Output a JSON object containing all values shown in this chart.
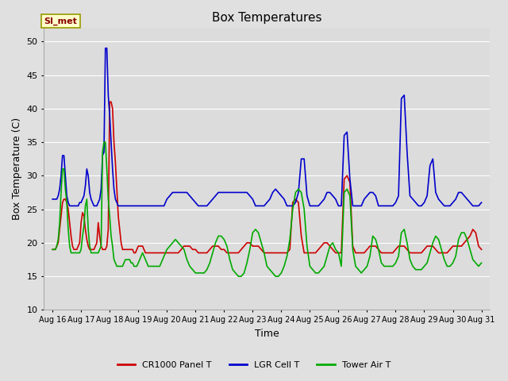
{
  "title": "Box Temperatures",
  "xlabel": "Time",
  "ylabel": "Box Temperature (C)",
  "ylim": [
    10,
    52
  ],
  "yticks": [
    10,
    15,
    20,
    25,
    30,
    35,
    40,
    45,
    50
  ],
  "fig_bg": "#e0e0e0",
  "plot_bg": "#dcdcdc",
  "annotation_text": "SI_met",
  "annotation_bg": "#ffffcc",
  "annotation_border": "#999900",
  "x_labels": [
    "Aug 16",
    "Aug 17",
    "Aug 18",
    "Aug 19",
    "Aug 20",
    "Aug 21",
    "Aug 22",
    "Aug 23",
    "Aug 24",
    "Aug 25",
    "Aug 26",
    "Aug 27",
    "Aug 28",
    "Aug 29",
    "Aug 30",
    "Aug 31"
  ],
  "x_positions": [
    0,
    1,
    2,
    3,
    4,
    5,
    6,
    7,
    8,
    9,
    10,
    11,
    12,
    13,
    14,
    15
  ],
  "series": {
    "CR1000 Panel T": {
      "color": "#cc0000",
      "linewidth": 1.2,
      "data_x": [
        0.0,
        0.05,
        0.1,
        0.15,
        0.2,
        0.25,
        0.3,
        0.35,
        0.4,
        0.45,
        0.5,
        0.55,
        0.6,
        0.65,
        0.7,
        0.75,
        0.8,
        0.85,
        0.9,
        0.95,
        1.0,
        1.05,
        1.1,
        1.15,
        1.2,
        1.25,
        1.3,
        1.35,
        1.4,
        1.45,
        1.5,
        1.55,
        1.6,
        1.65,
        1.7,
        1.75,
        1.8,
        1.85,
        1.9,
        1.95,
        2.0,
        2.05,
        2.1,
        2.15,
        2.2,
        2.25,
        2.3,
        2.35,
        2.4,
        2.45,
        2.5,
        2.55,
        2.6,
        2.65,
        2.7,
        2.75,
        2.8,
        2.85,
        2.9,
        2.95,
        3.0,
        3.05,
        3.1,
        3.15,
        3.2,
        3.25,
        3.3,
        3.35,
        3.4,
        3.45,
        3.5,
        3.55,
        3.6,
        3.65,
        3.7,
        3.75,
        3.8,
        3.85,
        3.9,
        3.95,
        4.0,
        4.1,
        4.2,
        4.3,
        4.4,
        4.5,
        4.6,
        4.7,
        4.8,
        4.9,
        5.0,
        5.1,
        5.2,
        5.3,
        5.4,
        5.5,
        5.6,
        5.7,
        5.8,
        5.9,
        6.0,
        6.1,
        6.2,
        6.3,
        6.4,
        6.5,
        6.6,
        6.7,
        6.8,
        6.9,
        7.0,
        7.1,
        7.2,
        7.3,
        7.4,
        7.5,
        7.6,
        7.7,
        7.8,
        7.9,
        8.0,
        8.1,
        8.2,
        8.3,
        8.4,
        8.5,
        8.6,
        8.7,
        8.8,
        8.9,
        9.0,
        9.1,
        9.2,
        9.3,
        9.4,
        9.5,
        9.6,
        9.7,
        9.8,
        9.9,
        10.0,
        10.1,
        10.2,
        10.3,
        10.4,
        10.5,
        10.6,
        10.7,
        10.8,
        10.9,
        11.0,
        11.1,
        11.2,
        11.3,
        11.4,
        11.5,
        11.6,
        11.7,
        11.8,
        11.9,
        12.0,
        12.1,
        12.2,
        12.3,
        12.4,
        12.5,
        12.6,
        12.7,
        12.8,
        12.9,
        13.0,
        13.1,
        13.2,
        13.3,
        13.4,
        13.5,
        13.6,
        13.7,
        13.8,
        13.9,
        14.0,
        14.1,
        14.2,
        14.3,
        14.4,
        14.5,
        14.6,
        14.7,
        14.8,
        14.9,
        15.0
      ],
      "data_y": [
        19.0,
        19.0,
        19.0,
        19.5,
        20.0,
        22.0,
        24.0,
        26.0,
        26.5,
        26.5,
        26.0,
        25.0,
        23.0,
        21.0,
        19.5,
        19.0,
        19.0,
        19.0,
        19.5,
        20.0,
        23.0,
        24.5,
        24.0,
        22.0,
        20.5,
        19.5,
        19.0,
        19.0,
        19.0,
        19.0,
        19.5,
        20.0,
        23.0,
        21.0,
        19.5,
        19.0,
        19.0,
        19.0,
        19.5,
        22.0,
        41.0,
        41.0,
        40.0,
        35.0,
        32.0,
        28.0,
        24.0,
        22.0,
        20.0,
        19.0,
        19.0,
        19.0,
        19.0,
        19.0,
        19.0,
        19.0,
        19.0,
        18.5,
        18.5,
        19.0,
        19.5,
        19.5,
        19.5,
        19.5,
        19.0,
        18.5,
        18.5,
        18.5,
        18.5,
        18.5,
        18.5,
        18.5,
        18.5,
        18.5,
        18.5,
        18.5,
        18.5,
        18.5,
        18.5,
        18.5,
        18.5,
        18.5,
        18.5,
        18.5,
        18.5,
        19.0,
        19.5,
        19.5,
        19.5,
        19.0,
        19.0,
        18.5,
        18.5,
        18.5,
        18.5,
        19.0,
        19.5,
        19.5,
        19.5,
        19.0,
        19.0,
        18.5,
        18.5,
        18.5,
        18.5,
        18.5,
        19.0,
        19.5,
        20.0,
        20.0,
        19.5,
        19.5,
        19.5,
        19.0,
        18.5,
        18.5,
        18.5,
        18.5,
        18.5,
        18.5,
        18.5,
        18.5,
        18.5,
        19.0,
        26.0,
        26.5,
        26.0,
        21.0,
        18.5,
        18.5,
        18.5,
        18.5,
        18.5,
        19.0,
        19.5,
        20.0,
        20.0,
        19.5,
        19.0,
        18.5,
        18.5,
        18.5,
        29.5,
        30.0,
        29.0,
        19.5,
        18.5,
        18.5,
        18.5,
        18.5,
        19.0,
        19.5,
        19.5,
        19.5,
        19.0,
        18.5,
        18.5,
        18.5,
        18.5,
        18.5,
        19.0,
        19.5,
        19.5,
        19.5,
        19.0,
        18.5,
        18.5,
        18.5,
        18.5,
        18.5,
        19.0,
        19.5,
        19.5,
        19.5,
        19.0,
        18.5,
        18.5,
        18.5,
        18.5,
        19.0,
        19.5,
        19.5,
        19.5,
        19.5,
        20.0,
        20.5,
        21.0,
        22.0,
        21.5,
        19.5,
        19.0
      ]
    },
    "LGR Cell T": {
      "color": "#0000cc",
      "linewidth": 1.2,
      "data_x": [
        0.0,
        0.05,
        0.1,
        0.15,
        0.2,
        0.25,
        0.3,
        0.35,
        0.4,
        0.45,
        0.5,
        0.55,
        0.6,
        0.65,
        0.7,
        0.75,
        0.8,
        0.85,
        0.9,
        0.95,
        1.0,
        1.05,
        1.1,
        1.15,
        1.2,
        1.25,
        1.3,
        1.35,
        1.4,
        1.45,
        1.5,
        1.55,
        1.6,
        1.65,
        1.7,
        1.75,
        1.8,
        1.85,
        1.9,
        1.95,
        2.0,
        2.05,
        2.1,
        2.15,
        2.2,
        2.25,
        2.3,
        2.35,
        2.4,
        2.45,
        2.5,
        2.55,
        2.6,
        2.65,
        2.7,
        2.75,
        2.8,
        2.85,
        2.9,
        2.95,
        3.0,
        3.05,
        3.1,
        3.15,
        3.2,
        3.25,
        3.3,
        3.35,
        3.4,
        3.45,
        3.5,
        3.55,
        3.6,
        3.65,
        3.7,
        3.75,
        3.8,
        3.85,
        3.9,
        3.95,
        4.0,
        4.1,
        4.2,
        4.3,
        4.4,
        4.5,
        4.6,
        4.7,
        4.8,
        4.9,
        5.0,
        5.1,
        5.2,
        5.3,
        5.4,
        5.5,
        5.6,
        5.7,
        5.8,
        5.9,
        6.0,
        6.1,
        6.2,
        6.3,
        6.4,
        6.5,
        6.6,
        6.7,
        6.8,
        6.9,
        7.0,
        7.1,
        7.2,
        7.3,
        7.4,
        7.5,
        7.6,
        7.7,
        7.8,
        7.9,
        8.0,
        8.1,
        8.2,
        8.3,
        8.4,
        8.5,
        8.6,
        8.7,
        8.8,
        8.9,
        9.0,
        9.1,
        9.2,
        9.3,
        9.4,
        9.5,
        9.6,
        9.7,
        9.8,
        9.9,
        10.0,
        10.1,
        10.2,
        10.3,
        10.4,
        10.5,
        10.6,
        10.7,
        10.8,
        10.9,
        11.0,
        11.1,
        11.2,
        11.3,
        11.4,
        11.5,
        11.6,
        11.7,
        11.8,
        11.9,
        12.0,
        12.1,
        12.2,
        12.3,
        12.4,
        12.5,
        12.6,
        12.7,
        12.8,
        12.9,
        13.0,
        13.1,
        13.2,
        13.3,
        13.4,
        13.5,
        13.6,
        13.7,
        13.8,
        13.9,
        14.0,
        14.1,
        14.2,
        14.3,
        14.4,
        14.5,
        14.6,
        14.7,
        14.8,
        14.9,
        15.0
      ],
      "data_y": [
        26.5,
        26.5,
        26.5,
        26.5,
        27.0,
        28.0,
        30.0,
        33.0,
        33.0,
        30.0,
        27.0,
        26.0,
        25.5,
        25.5,
        25.5,
        25.5,
        25.5,
        25.5,
        25.5,
        26.0,
        26.0,
        26.5,
        27.0,
        28.5,
        31.0,
        30.0,
        27.5,
        26.5,
        26.0,
        25.5,
        25.5,
        25.5,
        26.0,
        26.5,
        28.0,
        33.0,
        33.5,
        49.0,
        49.0,
        42.0,
        39.0,
        35.0,
        31.0,
        28.0,
        26.5,
        26.0,
        25.5,
        25.5,
        25.5,
        25.5,
        25.5,
        25.5,
        25.5,
        25.5,
        25.5,
        25.5,
        25.5,
        25.5,
        25.5,
        25.5,
        25.5,
        25.5,
        25.5,
        25.5,
        25.5,
        25.5,
        25.5,
        25.5,
        25.5,
        25.5,
        25.5,
        25.5,
        25.5,
        25.5,
        25.5,
        25.5,
        25.5,
        25.5,
        25.5,
        26.0,
        26.5,
        27.0,
        27.5,
        27.5,
        27.5,
        27.5,
        27.5,
        27.5,
        27.0,
        26.5,
        26.0,
        25.5,
        25.5,
        25.5,
        25.5,
        26.0,
        26.5,
        27.0,
        27.5,
        27.5,
        27.5,
        27.5,
        27.5,
        27.5,
        27.5,
        27.5,
        27.5,
        27.5,
        27.5,
        27.0,
        26.5,
        25.5,
        25.5,
        25.5,
        25.5,
        26.0,
        26.5,
        27.5,
        28.0,
        27.5,
        27.0,
        26.5,
        25.5,
        25.5,
        25.5,
        26.0,
        27.5,
        32.5,
        32.5,
        27.0,
        25.5,
        25.5,
        25.5,
        25.5,
        26.0,
        26.5,
        27.5,
        27.5,
        27.0,
        26.5,
        25.5,
        25.5,
        36.0,
        36.5,
        29.5,
        25.5,
        25.5,
        25.5,
        25.5,
        26.5,
        27.0,
        27.5,
        27.5,
        27.0,
        25.5,
        25.5,
        25.5,
        25.5,
        25.5,
        25.5,
        26.0,
        27.0,
        41.5,
        42.0,
        33.5,
        27.0,
        26.5,
        26.0,
        25.5,
        25.5,
        26.0,
        27.0,
        31.5,
        32.5,
        27.5,
        26.5,
        26.0,
        25.5,
        25.5,
        25.5,
        26.0,
        26.5,
        27.5,
        27.5,
        27.0,
        26.5,
        26.0,
        25.5,
        25.5,
        25.5,
        26.0
      ]
    },
    "Tower Air T": {
      "color": "#00aa00",
      "linewidth": 1.2,
      "data_x": [
        0.0,
        0.05,
        0.1,
        0.15,
        0.2,
        0.25,
        0.3,
        0.35,
        0.4,
        0.45,
        0.5,
        0.55,
        0.6,
        0.65,
        0.7,
        0.75,
        0.8,
        0.85,
        0.9,
        0.95,
        1.0,
        1.05,
        1.1,
        1.15,
        1.2,
        1.25,
        1.3,
        1.35,
        1.4,
        1.45,
        1.5,
        1.55,
        1.6,
        1.65,
        1.7,
        1.75,
        1.8,
        1.85,
        1.9,
        1.95,
        2.0,
        2.05,
        2.1,
        2.15,
        2.2,
        2.25,
        2.3,
        2.35,
        2.4,
        2.45,
        2.5,
        2.55,
        2.6,
        2.65,
        2.7,
        2.75,
        2.8,
        2.85,
        2.9,
        2.95,
        3.0,
        3.05,
        3.1,
        3.15,
        3.2,
        3.25,
        3.3,
        3.35,
        3.4,
        3.45,
        3.5,
        3.55,
        3.6,
        3.65,
        3.7,
        3.75,
        3.8,
        3.85,
        3.9,
        3.95,
        4.0,
        4.1,
        4.2,
        4.3,
        4.4,
        4.5,
        4.6,
        4.7,
        4.8,
        4.9,
        5.0,
        5.1,
        5.2,
        5.3,
        5.4,
        5.5,
        5.6,
        5.7,
        5.8,
        5.9,
        6.0,
        6.1,
        6.2,
        6.3,
        6.4,
        6.5,
        6.6,
        6.7,
        6.8,
        6.9,
        7.0,
        7.1,
        7.2,
        7.3,
        7.4,
        7.5,
        7.6,
        7.7,
        7.8,
        7.9,
        8.0,
        8.1,
        8.2,
        8.3,
        8.4,
        8.5,
        8.6,
        8.7,
        8.8,
        8.9,
        9.0,
        9.1,
        9.2,
        9.3,
        9.4,
        9.5,
        9.6,
        9.7,
        9.8,
        9.9,
        10.0,
        10.1,
        10.2,
        10.3,
        10.4,
        10.5,
        10.6,
        10.7,
        10.8,
        10.9,
        11.0,
        11.1,
        11.2,
        11.3,
        11.4,
        11.5,
        11.6,
        11.7,
        11.8,
        11.9,
        12.0,
        12.1,
        12.2,
        12.3,
        12.4,
        12.5,
        12.6,
        12.7,
        12.8,
        12.9,
        13.0,
        13.1,
        13.2,
        13.3,
        13.4,
        13.5,
        13.6,
        13.7,
        13.8,
        13.9,
        14.0,
        14.1,
        14.2,
        14.3,
        14.4,
        14.5,
        14.6,
        14.7,
        14.8,
        14.9,
        15.0
      ],
      "data_y": [
        19.0,
        19.0,
        19.0,
        19.5,
        20.5,
        23.0,
        27.5,
        31.0,
        31.0,
        28.0,
        26.0,
        22.0,
        19.5,
        18.5,
        18.5,
        18.5,
        18.5,
        18.5,
        18.5,
        18.5,
        19.0,
        21.0,
        22.5,
        25.5,
        26.5,
        22.0,
        19.5,
        18.5,
        18.5,
        18.5,
        18.5,
        18.5,
        18.5,
        19.0,
        19.5,
        33.5,
        35.0,
        35.0,
        31.0,
        26.5,
        24.0,
        21.0,
        19.5,
        17.5,
        17.0,
        16.5,
        16.5,
        16.5,
        16.5,
        16.5,
        17.0,
        17.5,
        17.5,
        17.5,
        17.5,
        17.0,
        17.0,
        16.5,
        16.5,
        16.5,
        17.0,
        17.5,
        18.0,
        18.5,
        18.0,
        17.5,
        17.0,
        16.5,
        16.5,
        16.5,
        16.5,
        16.5,
        16.5,
        16.5,
        16.5,
        16.5,
        17.0,
        17.5,
        18.0,
        18.5,
        19.0,
        19.5,
        20.0,
        20.5,
        20.0,
        19.5,
        19.0,
        17.5,
        16.5,
        16.0,
        15.5,
        15.5,
        15.5,
        15.5,
        16.0,
        17.0,
        18.5,
        20.0,
        21.0,
        21.0,
        20.5,
        19.5,
        17.5,
        16.0,
        15.5,
        15.0,
        15.0,
        15.5,
        17.0,
        19.0,
        21.5,
        22.0,
        21.5,
        20.0,
        18.5,
        16.5,
        16.0,
        15.5,
        15.0,
        15.0,
        15.5,
        16.5,
        18.0,
        20.5,
        25.0,
        27.5,
        28.0,
        27.5,
        25.0,
        19.5,
        16.5,
        16.0,
        15.5,
        15.5,
        16.0,
        16.5,
        18.0,
        19.5,
        20.0,
        19.0,
        18.5,
        16.5,
        27.5,
        28.0,
        27.0,
        19.0,
        16.5,
        16.0,
        15.5,
        16.0,
        16.5,
        18.0,
        21.0,
        20.5,
        19.0,
        17.0,
        16.5,
        16.5,
        16.5,
        16.5,
        17.0,
        18.0,
        21.5,
        22.0,
        20.0,
        17.5,
        16.5,
        16.0,
        16.0,
        16.0,
        16.5,
        17.0,
        18.5,
        20.0,
        21.0,
        20.5,
        19.0,
        17.5,
        16.5,
        16.5,
        17.0,
        18.0,
        20.5,
        21.5,
        21.5,
        20.5,
        19.0,
        17.5,
        17.0,
        16.5,
        17.0
      ]
    }
  }
}
